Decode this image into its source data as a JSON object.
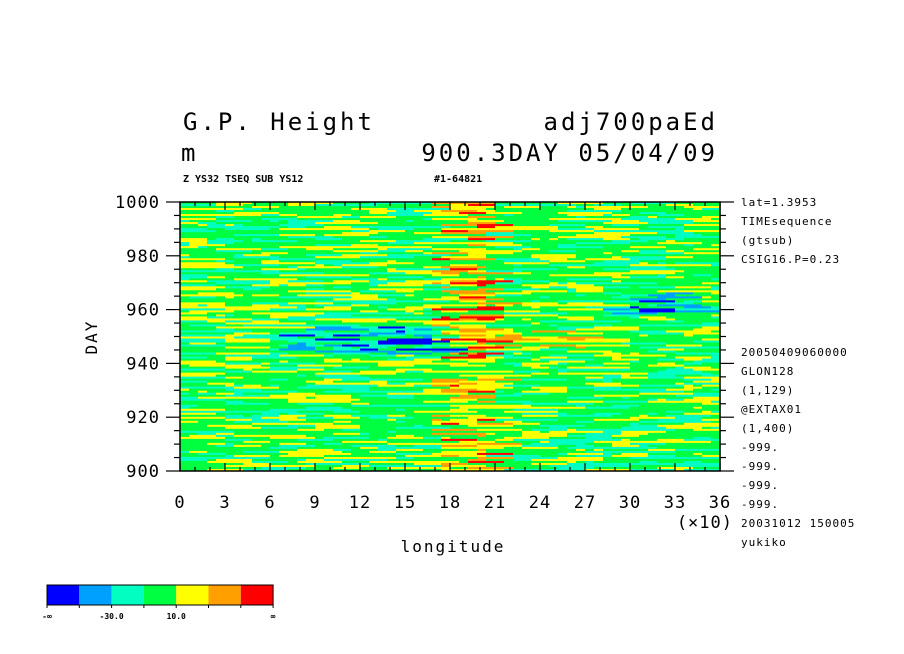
{
  "header": {
    "title_left": "G.P. Height",
    "title_right": "adj700paEd",
    "units": "m",
    "subtitle_right": "900.3DAY 05/04/09",
    "small_left": "Z YS32 TSEQ SUB YS12",
    "small_right": "#1-64821"
  },
  "side_info": {
    "top": [
      "lat=1.3953",
      "TIMEsequence",
      "(gtsub)",
      "CSIG16.P=0.23"
    ],
    "bottom": [
      "20050409060000",
      "GLON128",
      "(1,129)",
      "@EXTAX01",
      "(1,400)",
      "-999.",
      "-999.",
      "-999.",
      "-999.",
      "20031012 150005",
      "yukiko"
    ]
  },
  "colorbar": {
    "colors": [
      "#0000ff",
      "#00a0ff",
      "#00ffc0",
      "#00ff40",
      "#ffff00",
      "#ffa000",
      "#ff0000"
    ],
    "labels": [
      "-∞",
      "-30.0",
      "10.0",
      "∞"
    ]
  },
  "chart_data": {
    "type": "heatmap",
    "title": "G.P. Height",
    "xlabel": "longitude",
    "ylabel": "DAY",
    "x_multiplier": "(×10)",
    "xlim": [
      0,
      36
    ],
    "ylim": [
      900,
      1000
    ],
    "x_ticks": [
      "0",
      "3",
      "6",
      "9",
      "12",
      "15",
      "18",
      "21",
      "24",
      "27",
      "30",
      "33",
      "36"
    ],
    "y_ticks": [
      "900",
      "920",
      "940",
      "960",
      "980",
      "1000"
    ],
    "levels": [
      -30.0,
      10.0
    ],
    "palette": [
      "#0000ff",
      "#00a0ff",
      "#00ffc0",
      "#00ff40",
      "#ffff00",
      "#ffa000",
      "#ff0000"
    ],
    "dominant_classes": [
      "green",
      "yellow",
      "cyan"
    ]
  }
}
